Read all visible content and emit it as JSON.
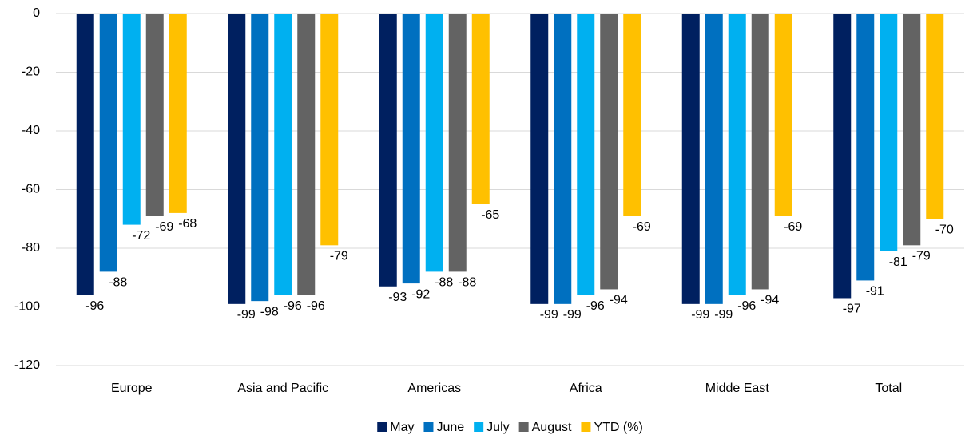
{
  "chart_data": {
    "type": "bar",
    "categories": [
      "Europe",
      "Asia and Pacific",
      "Americas",
      "Africa",
      "Midde East",
      "Total"
    ],
    "series": [
      {
        "name": "May",
        "color": "#002060",
        "values": [
          -96,
          -99,
          -93,
          -99,
          -99,
          -97
        ]
      },
      {
        "name": "June",
        "color": "#0070c0",
        "values": [
          -88,
          -98,
          -92,
          -99,
          -99,
          -91
        ]
      },
      {
        "name": "July",
        "color": "#00b0f0",
        "values": [
          -72,
          -96,
          -88,
          -96,
          -96,
          -81
        ]
      },
      {
        "name": "August",
        "color": "#636363",
        "values": [
          -69,
          -96,
          -88,
          -94,
          -94,
          -79
        ]
      },
      {
        "name": "YTD (%)",
        "color": "#ffc000",
        "values": [
          -68,
          -79,
          -65,
          -69,
          -69,
          -70
        ]
      }
    ],
    "ylim": [
      -120,
      0
    ],
    "yticks": [
      0,
      -20,
      -40,
      -60,
      -80,
      -100,
      -120
    ],
    "grid": true,
    "legend": "bottom"
  }
}
